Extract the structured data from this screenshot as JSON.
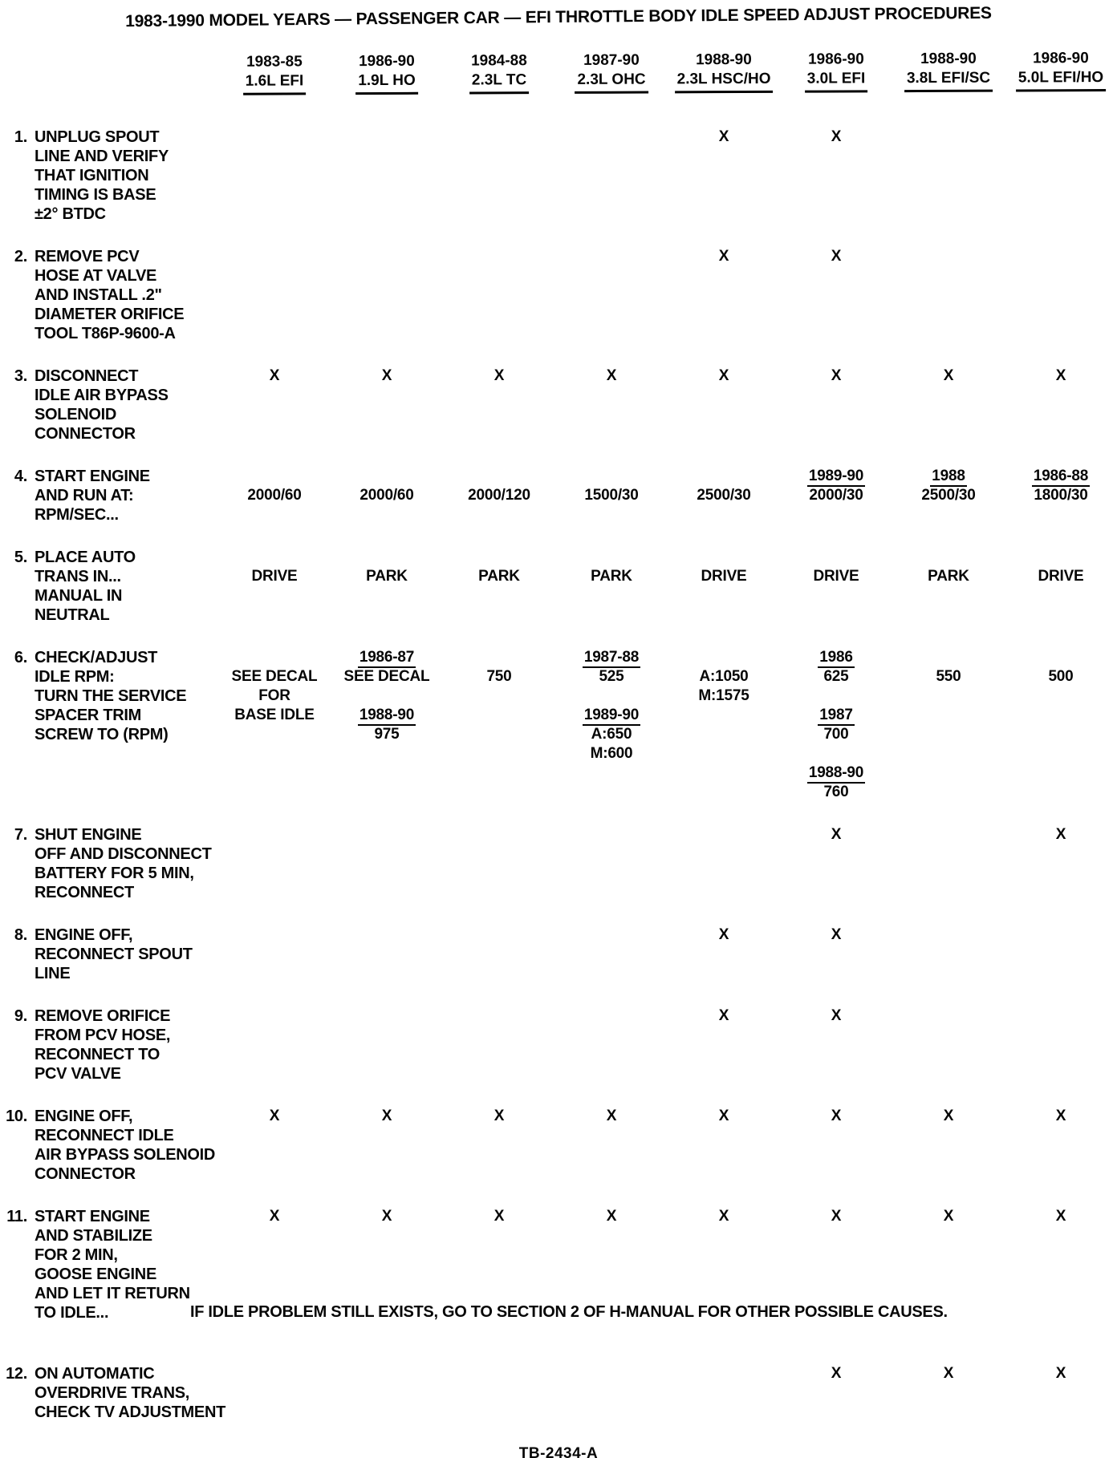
{
  "title": "1983-1990 MODEL YEARS — PASSENGER CAR — EFI THROTTLE BODY IDLE SPEED ADJUST PROCEDURES",
  "footer": "TB-2434-A",
  "columns": [
    {
      "years": "1983-85",
      "engine": "1.6L EFI"
    },
    {
      "years": "1986-90",
      "engine": "1.9L HO"
    },
    {
      "years": "1984-88",
      "engine": "2.3L TC"
    },
    {
      "years": "1987-90",
      "engine": "2.3L OHC"
    },
    {
      "years": "1988-90",
      "engine": "2.3L HSC/HO"
    },
    {
      "years": "1986-90",
      "engine": "3.0L EFI"
    },
    {
      "years": "1988-90",
      "engine": "3.8L EFI/SC"
    },
    {
      "years": "1986-90",
      "engine": "5.0L EFI/HO"
    }
  ],
  "rows": [
    {
      "num": "1.",
      "label_lines": [
        "UNPLUG SPOUT",
        "LINE AND VERIFY",
        "THAT IGNITION",
        "TIMING IS BASE",
        "±2° BTDC"
      ],
      "cells": [
        [],
        [],
        [],
        [],
        [
          {
            "t": "X"
          }
        ],
        [
          {
            "t": "X"
          }
        ],
        [],
        []
      ]
    },
    {
      "num": "2.",
      "label_lines": [
        "REMOVE PCV",
        "HOSE AT VALVE",
        "AND INSTALL .2\"",
        "DIAMETER ORIFICE",
        "TOOL T86P-9600-A"
      ],
      "cells": [
        [],
        [],
        [],
        [],
        [
          {
            "t": "X"
          }
        ],
        [
          {
            "t": "X"
          }
        ],
        [],
        []
      ]
    },
    {
      "num": "3.",
      "label_lines": [
        "DISCONNECT",
        "IDLE AIR BYPASS",
        "SOLENOID",
        "CONNECTOR"
      ],
      "cells": [
        [
          {
            "t": "X"
          }
        ],
        [
          {
            "t": "X"
          }
        ],
        [
          {
            "t": "X"
          }
        ],
        [
          {
            "t": "X"
          }
        ],
        [
          {
            "t": "X"
          }
        ],
        [
          {
            "t": "X"
          }
        ],
        [
          {
            "t": "X"
          }
        ],
        [
          {
            "t": "X"
          }
        ]
      ]
    },
    {
      "num": "4.",
      "label_lines": [
        "START ENGINE",
        "AND RUN AT:",
        "RPM/SEC..."
      ],
      "cells": [
        [
          {
            "t": ""
          },
          {
            "t": "2000/60"
          }
        ],
        [
          {
            "t": ""
          },
          {
            "t": "2000/60"
          }
        ],
        [
          {
            "t": ""
          },
          {
            "t": "2000/120"
          }
        ],
        [
          {
            "t": ""
          },
          {
            "t": "1500/30"
          }
        ],
        [
          {
            "t": ""
          },
          {
            "t": "2500/30"
          }
        ],
        [
          {
            "t": "1989-90",
            "u": true
          },
          {
            "t": "2000/30"
          }
        ],
        [
          {
            "t": "1988",
            "u": true
          },
          {
            "t": "2500/30"
          }
        ],
        [
          {
            "t": "1986-88",
            "u": true
          },
          {
            "t": "1800/30"
          }
        ]
      ]
    },
    {
      "num": "5.",
      "label_lines": [
        "PLACE AUTO",
        "TRANS IN...",
        "MANUAL IN",
        "NEUTRAL"
      ],
      "cells": [
        [
          {
            "t": ""
          },
          {
            "t": "DRIVE"
          }
        ],
        [
          {
            "t": ""
          },
          {
            "t": "PARK"
          }
        ],
        [
          {
            "t": ""
          },
          {
            "t": "PARK"
          }
        ],
        [
          {
            "t": ""
          },
          {
            "t": "PARK"
          }
        ],
        [
          {
            "t": ""
          },
          {
            "t": "DRIVE"
          }
        ],
        [
          {
            "t": ""
          },
          {
            "t": "DRIVE"
          }
        ],
        [
          {
            "t": ""
          },
          {
            "t": "PARK"
          }
        ],
        [
          {
            "t": ""
          },
          {
            "t": "DRIVE"
          }
        ]
      ]
    },
    {
      "num": "6.",
      "label_lines": [
        "CHECK/ADJUST",
        "IDLE RPM:",
        "TURN THE SERVICE",
        "SPACER TRIM",
        "SCREW TO (RPM)"
      ],
      "cells": [
        [
          {
            "t": ""
          },
          {
            "t": "SEE DECAL"
          },
          {
            "t": "FOR"
          },
          {
            "t": "BASE IDLE"
          }
        ],
        [
          {
            "t": "1986-87",
            "u": true
          },
          {
            "t": "SEE DECAL"
          },
          {
            "t": ""
          },
          {
            "t": "1988-90",
            "u": true
          },
          {
            "t": "975"
          }
        ],
        [
          {
            "t": ""
          },
          {
            "t": "750"
          }
        ],
        [
          {
            "t": "1987-88",
            "u": true
          },
          {
            "t": "525"
          },
          {
            "t": ""
          },
          {
            "t": "1989-90",
            "u": true
          },
          {
            "t": "A:650"
          },
          {
            "t": "M:600"
          }
        ],
        [
          {
            "t": ""
          },
          {
            "t": "A:1050"
          },
          {
            "t": "M:1575"
          }
        ],
        [
          {
            "t": "1986",
            "u": true
          },
          {
            "t": "625"
          },
          {
            "t": ""
          },
          {
            "t": "1987",
            "u": true
          },
          {
            "t": "700"
          },
          {
            "t": ""
          },
          {
            "t": "1988-90",
            "u": true
          },
          {
            "t": "760"
          }
        ],
        [
          {
            "t": ""
          },
          {
            "t": "550"
          }
        ],
        [
          {
            "t": ""
          },
          {
            "t": "500"
          }
        ]
      ]
    },
    {
      "num": "7.",
      "label_lines": [
        "SHUT ENGINE",
        "OFF AND DISCONNECT",
        "BATTERY FOR 5 MIN,",
        "RECONNECT"
      ],
      "cells": [
        [],
        [],
        [],
        [],
        [],
        [
          {
            "t": "X"
          }
        ],
        [],
        [
          {
            "t": "X"
          }
        ]
      ]
    },
    {
      "num": "8.",
      "label_lines": [
        "ENGINE OFF,",
        "RECONNECT SPOUT",
        "LINE"
      ],
      "cells": [
        [],
        [],
        [],
        [],
        [
          {
            "t": "X"
          }
        ],
        [
          {
            "t": "X"
          }
        ],
        [],
        []
      ]
    },
    {
      "num": "9.",
      "label_lines": [
        "REMOVE ORIFICE",
        "FROM PCV HOSE,",
        "RECONNECT TO",
        "PCV VALVE"
      ],
      "cells": [
        [],
        [],
        [],
        [],
        [
          {
            "t": "X"
          }
        ],
        [
          {
            "t": "X"
          }
        ],
        [],
        []
      ]
    },
    {
      "num": "10.",
      "label_lines": [
        "ENGINE OFF,",
        "RECONNECT IDLE",
        "AIR BYPASS SOLENOID",
        "CONNECTOR"
      ],
      "cells": [
        [
          {
            "t": "X"
          }
        ],
        [
          {
            "t": "X"
          }
        ],
        [
          {
            "t": "X"
          }
        ],
        [
          {
            "t": "X"
          }
        ],
        [
          {
            "t": "X"
          }
        ],
        [
          {
            "t": "X"
          }
        ],
        [
          {
            "t": "X"
          }
        ],
        [
          {
            "t": "X"
          }
        ]
      ]
    },
    {
      "num": "11.",
      "label_lines": [
        "START ENGINE",
        "AND STABILIZE",
        "FOR 2 MIN,",
        "GOOSE ENGINE",
        "AND LET IT RETURN",
        "TO IDLE..."
      ],
      "note": "IF IDLE PROBLEM STILL EXISTS, GO TO SECTION 2 OF H-MANUAL FOR OTHER POSSIBLE CAUSES.",
      "cells": [
        [
          {
            "t": "X"
          }
        ],
        [
          {
            "t": "X"
          }
        ],
        [
          {
            "t": "X"
          }
        ],
        [
          {
            "t": "X"
          }
        ],
        [
          {
            "t": "X"
          }
        ],
        [
          {
            "t": "X"
          }
        ],
        [
          {
            "t": "X"
          }
        ],
        [
          {
            "t": "X"
          }
        ]
      ]
    },
    {
      "num": "12.",
      "label_lines": [
        "ON AUTOMATIC",
        "OVERDRIVE TRANS,",
        "CHECK TV ADJUSTMENT"
      ],
      "cells": [
        [],
        [],
        [],
        [],
        [],
        [
          {
            "t": "X"
          }
        ],
        [
          {
            "t": "X"
          }
        ],
        [
          {
            "t": "X"
          }
        ]
      ]
    }
  ]
}
